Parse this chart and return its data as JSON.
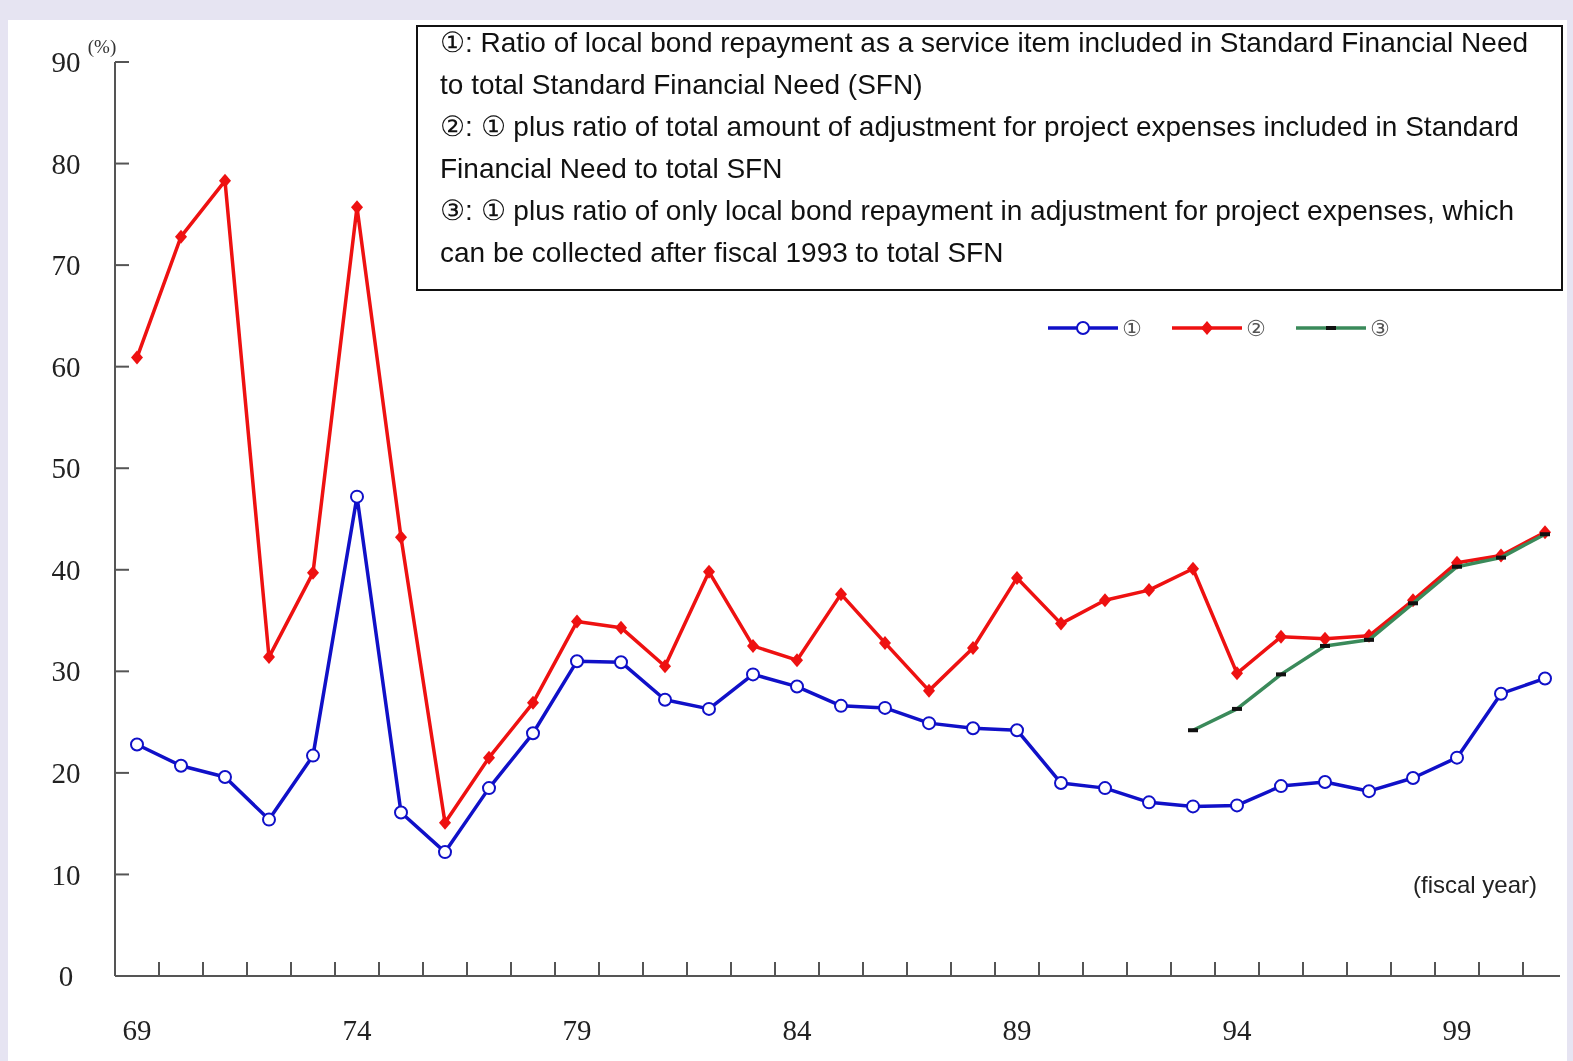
{
  "chart_data": {
    "type": "line",
    "ylabel": "(%)",
    "xlabel": "(fiscal year)",
    "categories": [
      "69",
      null,
      null,
      null,
      null,
      "74",
      null,
      null,
      null,
      null,
      "79",
      null,
      null,
      null,
      null,
      "84",
      null,
      null,
      null,
      null,
      "89",
      null,
      null,
      null,
      null,
      "94",
      null,
      null,
      null,
      null,
      "99",
      null,
      null
    ],
    "ylim": [
      0,
      90
    ],
    "yticks": [
      0,
      10,
      20,
      30,
      40,
      50,
      60,
      70,
      80,
      90
    ],
    "grid": false,
    "legend": "top right",
    "series": [
      {
        "name": "①",
        "color": "#1010c8",
        "marker": "circle",
        "values": [
          22.8,
          20.7,
          19.6,
          15.4,
          21.7,
          47.2,
          16.1,
          12.2,
          18.5,
          23.9,
          31.0,
          30.9,
          27.2,
          26.3,
          29.7,
          28.5,
          26.6,
          26.4,
          24.9,
          24.4,
          24.2,
          19.0,
          18.5,
          17.1,
          16.7,
          16.8,
          18.7,
          19.1,
          18.2,
          19.5,
          21.5,
          27.8,
          29.3
        ]
      },
      {
        "name": "②",
        "color": "#ee1111",
        "marker": "diamond",
        "values": [
          60.9,
          72.8,
          78.3,
          31.4,
          39.7,
          75.7,
          43.2,
          15.1,
          21.5,
          26.9,
          34.9,
          34.3,
          30.5,
          39.8,
          32.5,
          31.1,
          37.6,
          32.8,
          28.1,
          32.3,
          39.2,
          34.7,
          37.0,
          38.0,
          40.1,
          29.8,
          33.4,
          33.2,
          33.5,
          37.0,
          40.7,
          41.4,
          43.7
        ]
      },
      {
        "name": "③",
        "color": "#3a8a5a",
        "marker": "square",
        "values": [
          null,
          null,
          null,
          null,
          null,
          null,
          null,
          null,
          null,
          null,
          null,
          null,
          null,
          null,
          null,
          null,
          null,
          null,
          null,
          null,
          null,
          null,
          null,
          null,
          24.2,
          26.3,
          29.7,
          32.5,
          33.1,
          36.7,
          40.3,
          41.2,
          43.5
        ]
      }
    ],
    "annotations": [
      "①: Ratio of local bond repayment as a service item included in Standard Financial Need to total Standard Financial Need (SFN)",
      "②: ① plus ratio of total amount of adjustment for project expenses included in Standard Financial Need to total SFN",
      "③: ① plus ratio of only local bond repayment in adjustment for project expenses, which can be collected after fiscal 1993 to total SFN"
    ]
  }
}
